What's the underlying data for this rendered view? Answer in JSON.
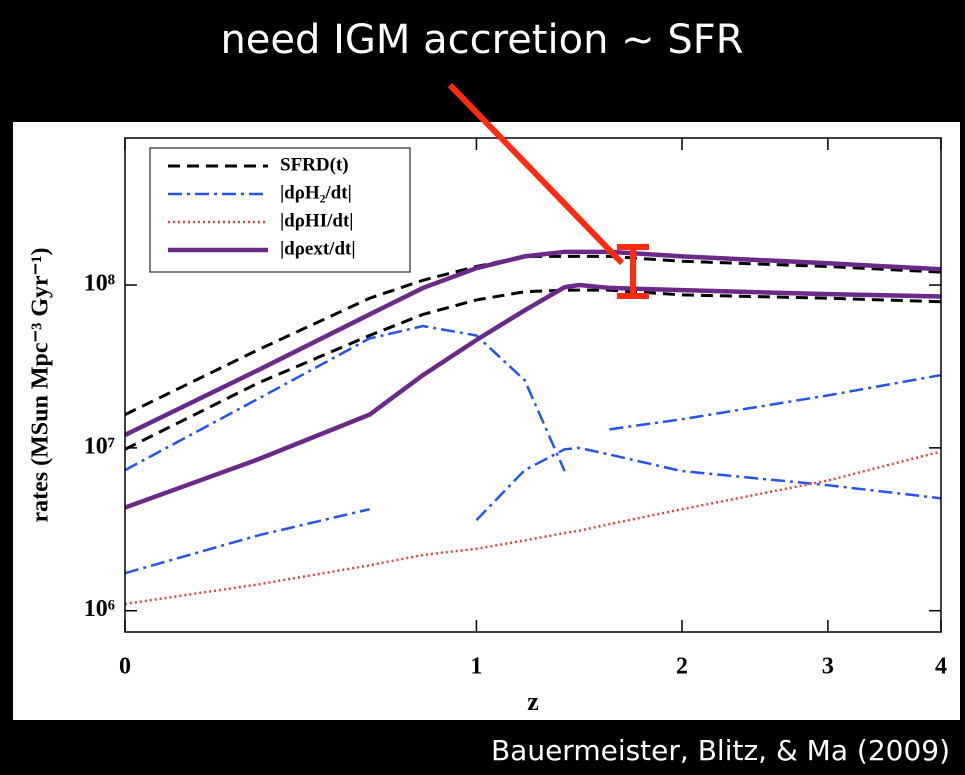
{
  "title": "need IGM accretion ~ SFR",
  "credit": "Bauermeister, Blitz, & Ma (2009)",
  "chart_data": {
    "type": "line",
    "xlabel": "z",
    "ylabel": "rates (MSun Mpc⁻³ Gyr⁻¹)",
    "xscale": "log1p",
    "yscale": "log",
    "xlim": [
      0,
      4
    ],
    "ylim": [
      740000,
      800000000
    ],
    "xticks": [
      0,
      1,
      2,
      3,
      4
    ],
    "yticks": [
      {
        "value": 1000000,
        "label": "10⁶"
      },
      {
        "value": 10000000,
        "label": "10⁷"
      },
      {
        "value": 100000000,
        "label": "10⁸"
      }
    ],
    "legend": "upper left",
    "x": [
      0,
      0.3,
      0.62,
      0.8,
      1.0,
      1.2,
      1.38,
      1.45,
      1.6,
      2,
      3,
      4
    ],
    "series": [
      {
        "name": "SFRD(t)",
        "color": "#000000",
        "dash": "12,7",
        "width": 3,
        "curves": [
          [
            16000000,
            40000000,
            83000000,
            107000000,
            130000000,
            150000000,
            150000000,
            150000000,
            150000000,
            140000000,
            130000000,
            120000000
          ],
          [
            9800000,
            25000000,
            49000000,
            66000000,
            81000000,
            91000000,
            93000000,
            93000000,
            93000000,
            87000000,
            83000000,
            79000000
          ]
        ]
      },
      {
        "name": "|dρH₂/dt|",
        "color": "#2255ee",
        "dash": "14,5,3,5",
        "width": 2.5,
        "curves": [
          [
            7300000,
            20000000,
            47000000,
            56000000,
            49000000,
            26000000,
            7200000,
            null,
            13000000,
            15000000,
            21000000,
            28000000
          ],
          [
            1700000,
            2900000,
            4200000,
            null,
            3600000,
            7300000,
            9800000,
            10000000,
            9100000,
            7200000,
            5900000,
            4900000
          ]
        ]
      },
      {
        "name": "|dρHI/dt|",
        "color": "#e8413a",
        "dash": "2,3",
        "width": 2.5,
        "curves": [
          [
            1100000,
            1450000,
            1900000,
            2200000,
            2400000,
            2700000,
            3000000,
            3100000,
            3400000,
            4200000,
            6300000,
            9500000
          ]
        ]
      },
      {
        "name": "|dρext/dt|",
        "color": "#6b2a8a",
        "dash": "none",
        "width": 4.5,
        "curves": [
          [
            12000000,
            30000000,
            66000000,
            96000000,
            127000000,
            150000000,
            160000000,
            160000000,
            160000000,
            150000000,
            136000000,
            125000000
          ],
          [
            4300000,
            8500000,
            16000000,
            28000000,
            46000000,
            70000000,
            97000000,
            100000000,
            96000000,
            93000000,
            88000000,
            85000000
          ]
        ]
      }
    ]
  }
}
